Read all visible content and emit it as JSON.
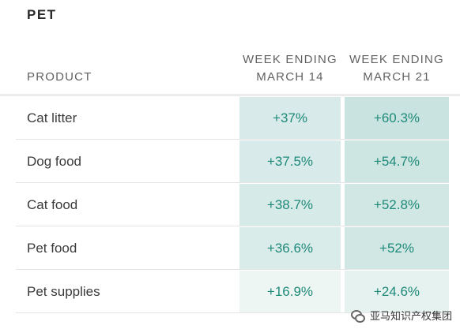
{
  "title": "PET",
  "columns": {
    "product": "PRODUCT",
    "week1_line1": "WEEK ENDING",
    "week1_line2": "MARCH 14",
    "week2_line1": "WEEK ENDING",
    "week2_line2": "MARCH 21"
  },
  "rows": [
    {
      "product": "Cat litter",
      "week1": "+37%",
      "week2": "+60.3%",
      "week1_shade": "#d8ebea",
      "week2_shade": "#c9e3e0"
    },
    {
      "product": "Dog food",
      "week1": "+37.5%",
      "week2": "+54.7%",
      "week1_shade": "#d8ebea",
      "week2_shade": "#cde6e2"
    },
    {
      "product": "Cat food",
      "week1": "+38.7%",
      "week2": "+52.8%",
      "week1_shade": "#d6eae8",
      "week2_shade": "#d0e7e3"
    },
    {
      "product": "Pet food",
      "week1": "+36.6%",
      "week2": "+52%",
      "week1_shade": "#d9ecea",
      "week2_shade": "#d1e7e4"
    },
    {
      "product": "Pet supplies",
      "week1": "+16.9%",
      "week2": "+24.6%",
      "week1_shade": "#eef6f3",
      "week2_shade": "#e6f2ef"
    }
  ],
  "watermark": {
    "icon": "wechat-icon",
    "text": "亚马知识产权集团"
  },
  "colors": {
    "value_text": "#1f8a7a",
    "header_text": "#616161"
  }
}
